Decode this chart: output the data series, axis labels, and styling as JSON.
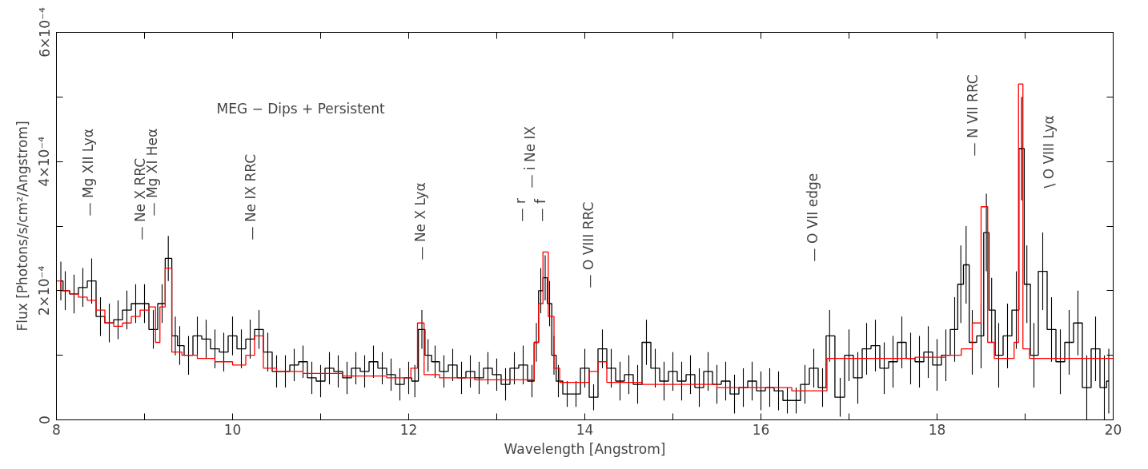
{
  "chart_data": {
    "type": "step",
    "xlabel": "Wavelength [Angstrom]",
    "ylabel": "Flux [Photons/s/cm²/Angstrom]",
    "xlim": [
      8,
      20
    ],
    "ylim": [
      0,
      0.0006
    ],
    "xticks": [
      8,
      {
        "value": 9,
        "label": null
      },
      10,
      {
        "value": 11,
        "label": null
      },
      12,
      {
        "value": 13,
        "label": null
      },
      14,
      {
        "value": 15,
        "label": null
      },
      16,
      {
        "value": 17,
        "label": null
      },
      18,
      {
        "value": 19,
        "label": null
      },
      20
    ],
    "yticks": [
      {
        "value": 0,
        "label": "0"
      },
      {
        "value": 0.0001,
        "label": null
      },
      {
        "value": 0.0002,
        "label": "2×10⁻⁴"
      },
      {
        "value": 0.0003,
        "label": null
      },
      {
        "value": 0.0004,
        "label": "4×10⁻⁴"
      },
      {
        "value": 0.0005,
        "label": null
      },
      {
        "value": 0.0006,
        "label": "6×10⁻⁴"
      }
    ],
    "series": [
      {
        "color": "#000000",
        "x": [
          8.05,
          8.1,
          8.2,
          8.3,
          8.4,
          8.5,
          8.6,
          8.7,
          8.8,
          8.9,
          9.0,
          9.1,
          9.2,
          9.27,
          9.35,
          9.4,
          9.5,
          9.6,
          9.7,
          9.8,
          9.9,
          10.0,
          10.1,
          10.2,
          10.3,
          10.4,
          10.5,
          10.6,
          10.7,
          10.8,
          10.9,
          11.0,
          11.1,
          11.2,
          11.3,
          11.4,
          11.5,
          11.6,
          11.7,
          11.8,
          11.9,
          12.0,
          12.07,
          12.15,
          12.22,
          12.3,
          12.4,
          12.5,
          12.6,
          12.7,
          12.8,
          12.9,
          13.0,
          13.1,
          13.2,
          13.3,
          13.4,
          13.45,
          13.5,
          13.55,
          13.6,
          13.65,
          13.7,
          13.8,
          13.9,
          14.0,
          14.1,
          14.2,
          14.3,
          14.4,
          14.5,
          14.6,
          14.7,
          14.8,
          14.9,
          15.0,
          15.1,
          15.2,
          15.3,
          15.4,
          15.5,
          15.6,
          15.7,
          15.8,
          15.9,
          16.0,
          16.1,
          16.2,
          16.3,
          16.4,
          16.5,
          16.6,
          16.7,
          16.78,
          16.9,
          17.0,
          17.1,
          17.2,
          17.3,
          17.4,
          17.5,
          17.6,
          17.7,
          17.8,
          17.9,
          18.0,
          18.1,
          18.2,
          18.27,
          18.33,
          18.4,
          18.5,
          18.56,
          18.62,
          18.7,
          18.8,
          18.9,
          18.96,
          19.02,
          19.1,
          19.2,
          19.3,
          19.4,
          19.5,
          19.6,
          19.7,
          19.8,
          19.9,
          19.95
        ],
        "values": [
          0.000215,
          0.0002,
          0.000195,
          0.000205,
          0.000215,
          0.00016,
          0.00015,
          0.000155,
          0.00017,
          0.00018,
          0.00018,
          0.00014,
          0.00018,
          0.00025,
          0.00013,
          0.000115,
          0.0001,
          0.00013,
          0.000125,
          0.00011,
          0.000105,
          0.00013,
          0.00011,
          0.000125,
          0.00014,
          0.000105,
          7.5e-05,
          7.5e-05,
          8.5e-05,
          9e-05,
          6.5e-05,
          6e-05,
          8e-05,
          7.5e-05,
          6.5e-05,
          8e-05,
          7.5e-05,
          9e-05,
          8e-05,
          7e-05,
          5.5e-05,
          6.5e-05,
          6e-05,
          0.00014,
          0.0001,
          9e-05,
          7.5e-05,
          8.5e-05,
          6.5e-05,
          7.5e-05,
          6.5e-05,
          8e-05,
          7e-05,
          5.5e-05,
          8e-05,
          8.5e-05,
          6e-05,
          0.00012,
          0.0002,
          0.00022,
          0.00018,
          0.0001,
          6e-05,
          4e-05,
          4e-05,
          8e-05,
          3.5e-05,
          0.00011,
          8e-05,
          6e-05,
          7e-05,
          5.5e-05,
          0.00012,
          8e-05,
          6e-05,
          7.5e-05,
          6e-05,
          7e-05,
          5e-05,
          7.5e-05,
          5.5e-05,
          6e-05,
          4e-05,
          5e-05,
          6e-05,
          4.5e-05,
          5e-05,
          4.5e-05,
          3e-05,
          3e-05,
          5.5e-05,
          8e-05,
          5e-05,
          0.00013,
          3.5e-05,
          0.0001,
          6.5e-05,
          0.00011,
          0.000115,
          8e-05,
          9e-05,
          0.00012,
          9.5e-05,
          9e-05,
          0.000105,
          8.5e-05,
          0.0001,
          0.00014,
          0.00021,
          0.00024,
          0.00012,
          0.00013,
          0.00029,
          0.00017,
          0.0001,
          0.00013,
          0.00017,
          0.00042,
          0.00021,
          0.0001,
          0.00023,
          0.00014,
          9e-05,
          0.00012,
          0.00015,
          5e-05,
          0.00011,
          5e-05,
          6e-05
        ],
        "errors": [
          3e-05,
          3e-05,
          3e-05,
          3e-05,
          3.5e-05,
          3e-05,
          3e-05,
          3e-05,
          3e-05,
          3e-05,
          3e-05,
          3e-05,
          3e-05,
          3.5e-05,
          3e-05,
          3e-05,
          3e-05,
          3e-05,
          3e-05,
          3e-05,
          3e-05,
          3e-05,
          3e-05,
          3e-05,
          3e-05,
          3e-05,
          2.5e-05,
          2.5e-05,
          2.5e-05,
          2.5e-05,
          2.5e-05,
          2.5e-05,
          2.5e-05,
          2.5e-05,
          2.5e-05,
          2.5e-05,
          2.5e-05,
          2.5e-05,
          2.5e-05,
          2.5e-05,
          2.5e-05,
          2.5e-05,
          2.5e-05,
          3e-05,
          2.5e-05,
          2.5e-05,
          2.5e-05,
          2.5e-05,
          2.5e-05,
          2.5e-05,
          2.5e-05,
          2.5e-05,
          2.5e-05,
          2.5e-05,
          2.5e-05,
          3e-05,
          2.5e-05,
          3e-05,
          3.5e-05,
          3.5e-05,
          3.5e-05,
          3e-05,
          2.5e-05,
          2e-05,
          2e-05,
          3e-05,
          2e-05,
          3e-05,
          3e-05,
          3e-05,
          3e-05,
          3e-05,
          3.5e-05,
          3e-05,
          3e-05,
          3e-05,
          3e-05,
          3e-05,
          3e-05,
          3e-05,
          3e-05,
          3e-05,
          3e-05,
          3e-05,
          3e-05,
          3e-05,
          3e-05,
          3e-05,
          2e-05,
          2e-05,
          3e-05,
          3e-05,
          3e-05,
          4e-05,
          3e-05,
          4e-05,
          4e-05,
          4e-05,
          4e-05,
          4e-05,
          4e-05,
          4e-05,
          4e-05,
          4e-05,
          4e-05,
          4e-05,
          4e-05,
          5e-05,
          6e-05,
          6e-05,
          5e-05,
          5e-05,
          6e-05,
          5e-05,
          5e-05,
          5e-05,
          6e-05,
          8e-05,
          6e-05,
          5e-05,
          6e-05,
          5e-05,
          5e-05,
          5e-05,
          5e-05,
          5e-05,
          5e-05,
          5e-05,
          5e-05
        ]
      },
      {
        "color": "#ff0000",
        "x": [
          8.0,
          8.1,
          8.2,
          8.3,
          8.4,
          8.5,
          8.6,
          8.7,
          8.8,
          8.9,
          9.0,
          9.1,
          9.15,
          9.2,
          9.27,
          9.35,
          9.5,
          9.7,
          9.9,
          10.1,
          10.2,
          10.3,
          10.4,
          10.6,
          11.0,
          11.5,
          12.0,
          12.05,
          12.15,
          12.2,
          12.5,
          13.0,
          13.4,
          13.45,
          13.5,
          13.55,
          13.62,
          13.68,
          13.75,
          14.0,
          14.1,
          14.2,
          14.3,
          15.0,
          16.0,
          16.7,
          16.8,
          17.5,
          18.0,
          18.2,
          18.35,
          18.45,
          18.55,
          18.6,
          18.7,
          18.85,
          18.9,
          18.95,
          19.0,
          19.1,
          20.0
        ],
        "values": [
          0.000215,
          0.0002,
          0.000195,
          0.00019,
          0.000185,
          0.00017,
          0.00015,
          0.000145,
          0.00015,
          0.00016,
          0.00017,
          0.000175,
          0.00012,
          0.000175,
          0.000235,
          0.000105,
          0.0001,
          9.5e-05,
          9e-05,
          8.5e-05,
          0.0001,
          0.00013,
          8e-05,
          7.5e-05,
          7.2e-05,
          6.8e-05,
          6.5e-05,
          8e-05,
          0.00015,
          7e-05,
          6.5e-05,
          6.2e-05,
          6.2e-05,
          0.00012,
          0.00018,
          0.00026,
          0.00016,
          8e-05,
          5.8e-05,
          5.8e-05,
          7.5e-05,
          9e-05,
          5.8e-05,
          5.5e-05,
          5e-05,
          4.5e-05,
          9.5e-05,
          9.5e-05,
          9.7e-05,
          0.0001,
          0.00011,
          0.00015,
          0.00033,
          0.00012,
          9.5e-05,
          9.5e-05,
          0.00012,
          0.00052,
          0.00011,
          9.5e-05,
          9.5e-05
        ]
      }
    ],
    "annotations": [
      "MEG − Dips + Persistent",
      "—  Mg XII Lyα",
      "—  Ne X RRC",
      "—  Mg XI Heα",
      "—  Ne IX RRC",
      "—  Ne X Lyα",
      "—  r",
      "—  i Ne IX",
      "—  f",
      "—  O VIII RRC",
      "—  O VII edge",
      "—  N VII RRC",
      "\\  O VIII Lyα"
    ]
  }
}
